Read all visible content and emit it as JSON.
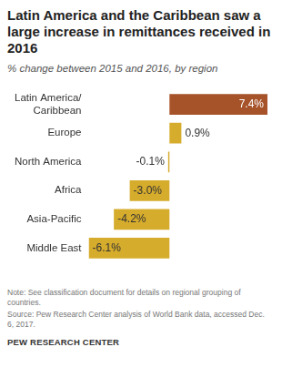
{
  "chart_data": {
    "type": "bar",
    "orientation": "horizontal",
    "title": "Latin America and the Caribbean saw a large increase in remittances received in 2016",
    "subtitle": "% change between 2015 and  2016, by region",
    "categories": [
      "Latin America/Caribbean",
      "Europe",
      "North America",
      "Africa",
      "Asia-Pacific",
      "Middle East"
    ],
    "values": [
      7.4,
      0.9,
      -0.1,
      -3.0,
      -4.2,
      -6.1
    ],
    "value_labels": [
      "7.4%",
      "0.9%",
      "-0.1%",
      "-3.0%",
      "-4.2%",
      "-6.1%"
    ],
    "colors": [
      "#a6532a",
      "#d6ac2c",
      "#d6ac2c",
      "#d6ac2c",
      "#d6ac2c",
      "#d6ac2c"
    ],
    "xlim": [
      -6.1,
      7.4
    ],
    "data_labels": true,
    "tick_labels": "y",
    "grid": false,
    "note": "Note: See classification document for details on regional grouping of countries.",
    "source": "Source: Pew Research Center analysis of World Bank data, accessed Dec. 6, 2017.",
    "credit": "PEW RESEARCH CENTER"
  }
}
